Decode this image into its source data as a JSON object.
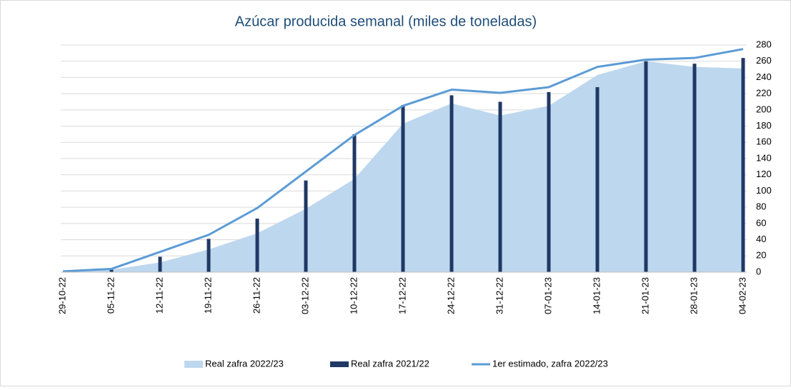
{
  "chart_data": {
    "type": "combo",
    "title": "Azúcar producida semanal (miles de toneladas)",
    "categories": [
      "29-10-22",
      "05-11-22",
      "12-11-22",
      "19-11-22",
      "26-11-22",
      "03-12-22",
      "10-12-22",
      "17-12-22",
      "24-12-22",
      "31-12-22",
      "07-01-23",
      "14-01-23",
      "21-01-23",
      "28-01-23",
      "04-02-23"
    ],
    "series": [
      {
        "name": "Real zafra 2022/23",
        "type": "area",
        "color": "#bdd7ee",
        "values": [
          0,
          3,
          12,
          28,
          48,
          78,
          115,
          183,
          208,
          193,
          205,
          243,
          260,
          253,
          251
        ]
      },
      {
        "name": "Real zafra 2021/22",
        "type": "bar",
        "color": "#203864",
        "values": [
          0,
          3,
          19,
          41,
          66,
          113,
          170,
          206,
          218,
          210,
          222,
          228,
          260,
          257,
          264
        ]
      },
      {
        "name": "1er estimado, zafra 2022/23",
        "type": "line",
        "color": "#5b9bd5",
        "values": [
          1,
          4,
          25,
          46,
          79,
          124,
          169,
          205,
          225,
          221,
          228,
          253,
          262,
          264,
          275
        ]
      }
    ],
    "ylim": [
      0,
      280
    ],
    "yticks": [
      0,
      20,
      40,
      60,
      80,
      100,
      120,
      140,
      160,
      180,
      200,
      220,
      240,
      260,
      280
    ],
    "grid": true,
    "y_axis_side": "right",
    "legend": "bottom"
  }
}
